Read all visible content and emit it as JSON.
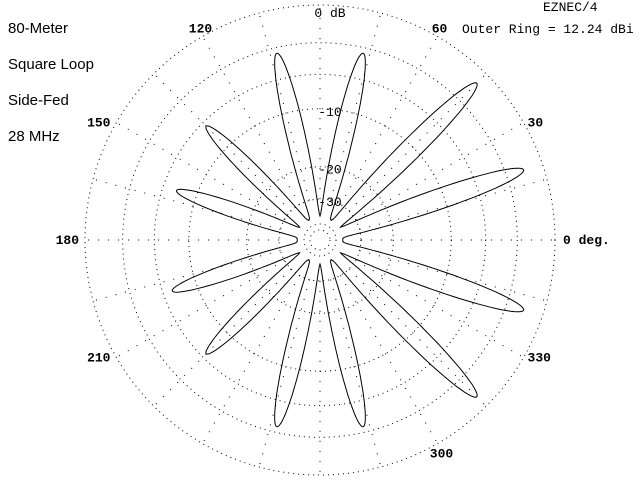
{
  "header": {
    "title_lines": [
      "80-Meter",
      "Square Loop",
      "Side-Fed",
      "28 MHz"
    ],
    "program": "EZNEC/4",
    "outer_ring": "Outer Ring = 12.24 dBi"
  },
  "chart_data": {
    "type": "polar-line",
    "outer_ring_dbi": 12.24,
    "radial_labels": [
      "0 dB",
      "-10",
      "-20",
      "-30"
    ],
    "angle_labels": [
      {
        "angle": 0,
        "text": "0 deg."
      },
      {
        "angle": 30,
        "text": "30"
      },
      {
        "angle": 60,
        "text": "60"
      },
      {
        "angle": 120,
        "text": "120"
      },
      {
        "angle": 150,
        "text": "150"
      },
      {
        "angle": 180,
        "text": "180"
      },
      {
        "angle": 210,
        "text": "210"
      },
      {
        "angle": 300,
        "text": "300"
      },
      {
        "angle": 330,
        "text": "330"
      }
    ],
    "lobes": [
      {
        "angle_deg": 19,
        "peak_db": -1.5
      },
      {
        "angle_deg": 45,
        "peak_db": -1.0
      },
      {
        "angle_deg": 77,
        "peak_db": -3.5
      },
      {
        "angle_deg": 103,
        "peak_db": -3.5
      },
      {
        "angle_deg": 135,
        "peak_db": -6.5
      },
      {
        "angle_deg": 161,
        "peak_db": -7.5
      },
      {
        "angle_deg": 199,
        "peak_db": -7.0
      },
      {
        "angle_deg": 225,
        "peak_db": -6.5
      },
      {
        "angle_deg": 257,
        "peak_db": -3.5
      },
      {
        "angle_deg": 283,
        "peak_db": -3.5
      },
      {
        "angle_deg": 315,
        "peak_db": -1.0
      },
      {
        "angle_deg": 341,
        "peak_db": -1.5
      }
    ]
  }
}
